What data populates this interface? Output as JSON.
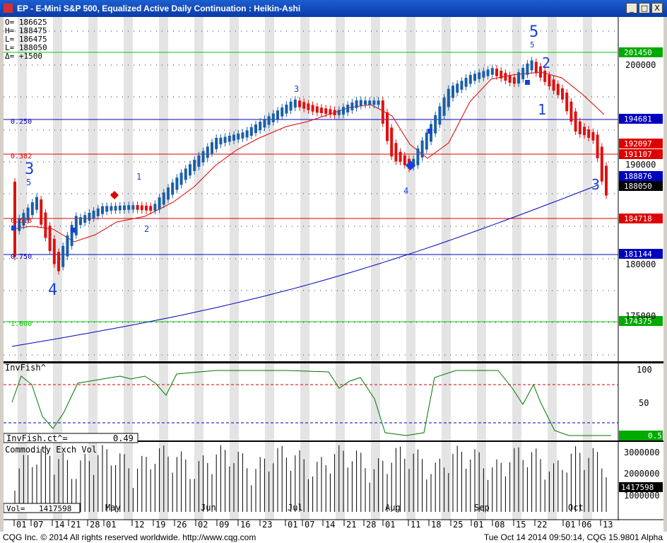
{
  "window": {
    "title": "EP - E-Mini S&P 500, Equalized Active Daily Continuation : Heikin-Ashi",
    "min_label": "_",
    "max_label": "□",
    "close_label": "X"
  },
  "ohlc": [
    {
      "label": "O= 186625"
    },
    {
      "label": "H= 188475"
    },
    {
      "label": "L= 186475"
    },
    {
      "label": "L= 188050"
    },
    {
      "label": "Δ=  +1500"
    }
  ],
  "price_axis": [
    "200000",
    "190000",
    "180000",
    "175000"
  ],
  "fib_labels": [
    "0.250",
    "0.382",
    "0.618",
    "0.750",
    "1.000"
  ],
  "price_tags": [
    {
      "text": "201450",
      "bg": "#00aa00"
    },
    {
      "text": "194681",
      "bg": "#0000c0"
    },
    {
      "text": "192097",
      "bg": "#dd0000"
    },
    {
      "text": "191107",
      "bg": "#dd0000"
    },
    {
      "text": "188876",
      "bg": "#0000c0"
    },
    {
      "text": "188050",
      "bg": "#000000"
    },
    {
      "text": "184718",
      "bg": "#dd0000"
    },
    {
      "text": "181144",
      "bg": "#0000c0"
    },
    {
      "text": "174375",
      "bg": "#00aa00"
    }
  ],
  "wave_labels": [
    "3",
    "5",
    "4",
    "1",
    "2",
    "3",
    "4",
    "5",
    "5",
    "2",
    "1",
    "3"
  ],
  "indicator": {
    "name": "InvFish^",
    "readout_label": "InvFish.ct^=",
    "readout_value": "0.49",
    "axis": [
      "100",
      "50"
    ],
    "tag": "0.5"
  },
  "volume": {
    "name": "Commodity Exch Vol",
    "readout_label": "Vol=",
    "readout_value": "1417598",
    "axis": [
      "3000000",
      "2000000",
      "1000000"
    ],
    "tag": "1417598"
  },
  "months": [
    "May",
    "Jun",
    "Jul",
    "Aug",
    "Sep",
    "Oct"
  ],
  "dates": [
    "01",
    "07",
    "14",
    "21",
    "28",
    "01",
    "12",
    "19",
    "26",
    "02",
    "09",
    "16",
    "23",
    "01",
    "07",
    "14",
    "21",
    "28",
    "01",
    "11",
    "18",
    "25",
    "01",
    "08",
    "15",
    "22",
    "01",
    "06",
    "13"
  ],
  "footer": {
    "left": "CQG Inc. © 2014 All rights reserved worldwide. http://www.cqg.com",
    "right": "Tue Oct 14 2014 09:50:14, CQG 15.9801 Alpha"
  },
  "colors": {
    "up_candle": "#1a5fa8",
    "down_candle": "#e01010",
    "ma_fast": "#dd0000",
    "ma_slow": "#0000c0",
    "oscillator": "#007700",
    "fib_green": "#00cc00"
  }
}
